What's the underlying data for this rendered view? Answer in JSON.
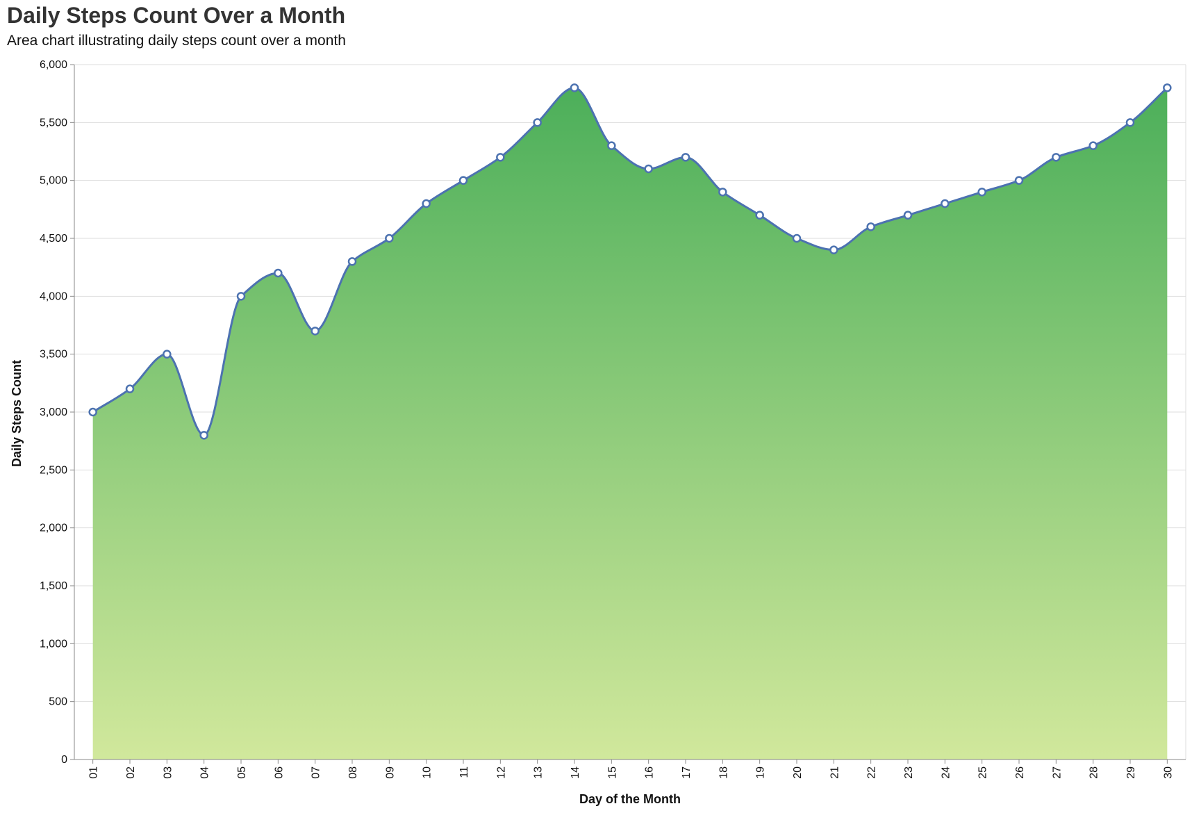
{
  "chart_data": {
    "type": "area",
    "title": "Daily Steps Count Over a Month",
    "subtitle": "Area chart illustrating daily steps count over a month",
    "xlabel": "Day of the Month",
    "ylabel": "Daily Steps Count",
    "categories": [
      "01",
      "02",
      "03",
      "04",
      "05",
      "06",
      "07",
      "08",
      "09",
      "10",
      "11",
      "12",
      "13",
      "14",
      "15",
      "16",
      "17",
      "18",
      "19",
      "20",
      "21",
      "22",
      "23",
      "24",
      "25",
      "26",
      "27",
      "28",
      "29",
      "30"
    ],
    "values": [
      3000,
      3200,
      3500,
      2800,
      4000,
      4200,
      3700,
      4300,
      4500,
      4800,
      5000,
      5200,
      5500,
      5800,
      5300,
      5100,
      5200,
      4900,
      4700,
      4500,
      4400,
      4600,
      4700,
      4800,
      4900,
      5000,
      5200,
      5300,
      5500,
      5800
    ],
    "ylim": [
      0,
      6000
    ],
    "yticks": [
      0,
      500,
      1000,
      1500,
      2000,
      2500,
      3000,
      3500,
      4000,
      4500,
      5000,
      5500,
      6000
    ],
    "ytick_labels": [
      "0",
      "500",
      "1,000",
      "1,500",
      "2,000",
      "2,500",
      "3,000",
      "3,500",
      "4,000",
      "4,500",
      "5,000",
      "5,500",
      "6,000"
    ],
    "grid": true,
    "legend": "none",
    "colors": {
      "line": "#4c72b0",
      "point_fill": "#ffffff",
      "area_top": "#4caf5a",
      "area_bottom": "#d1e89c",
      "grid": "#dddddd",
      "axis": "#888888"
    }
  }
}
